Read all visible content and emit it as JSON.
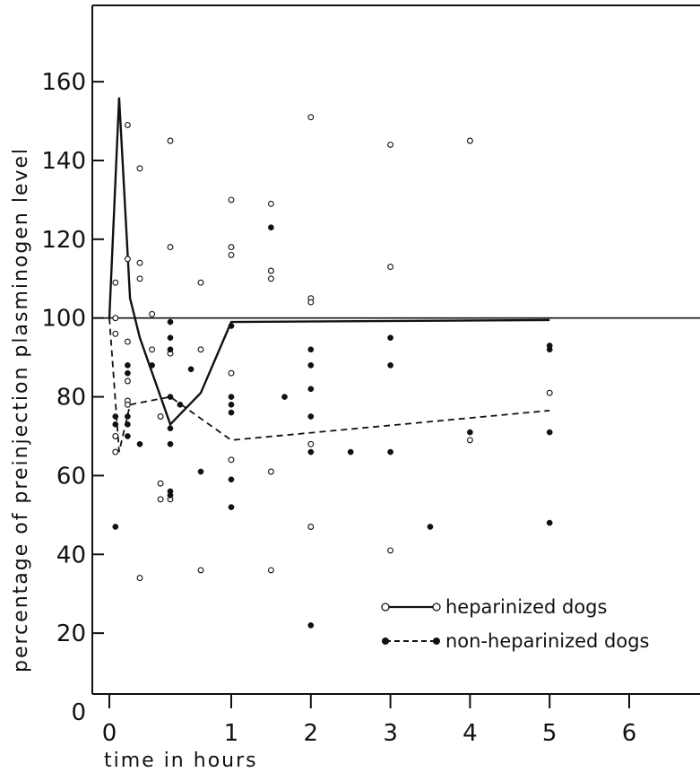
{
  "chart_data": {
    "type": "scatter",
    "xlabel": "time in hours",
    "ylabel": "percentage of preinjection plasminogen level",
    "x_ticks": [
      0,
      1,
      2,
      3,
      4,
      5,
      6
    ],
    "y_ticks": [
      0,
      20,
      40,
      60,
      80,
      100,
      120,
      140,
      160
    ],
    "ylim": [
      0,
      180
    ],
    "reference_line_y": 100,
    "legend": {
      "position": "bottom-right",
      "entries": [
        "heparinized dogs",
        "non-heparinized dogs"
      ]
    },
    "series": [
      {
        "name": "heparinized dogs",
        "marker": "open-circle",
        "line": "solid",
        "points": [
          [
            0.05,
            66
          ],
          [
            0.05,
            70
          ],
          [
            0.05,
            96
          ],
          [
            0.05,
            100
          ],
          [
            0.05,
            109
          ],
          [
            0.15,
            149
          ],
          [
            0.15,
            115
          ],
          [
            0.15,
            94
          ],
          [
            0.15,
            84
          ],
          [
            0.15,
            79
          ],
          [
            0.15,
            78
          ],
          [
            0.25,
            138
          ],
          [
            0.25,
            114
          ],
          [
            0.25,
            110
          ],
          [
            0.25,
            34
          ],
          [
            0.35,
            101
          ],
          [
            0.35,
            92
          ],
          [
            0.42,
            75
          ],
          [
            0.42,
            58
          ],
          [
            0.42,
            54
          ],
          [
            0.5,
            145
          ],
          [
            0.5,
            118
          ],
          [
            0.5,
            91
          ],
          [
            0.5,
            54
          ],
          [
            0.75,
            109
          ],
          [
            0.75,
            92
          ],
          [
            0.75,
            36
          ],
          [
            1.0,
            130
          ],
          [
            1.0,
            118
          ],
          [
            1.0,
            116
          ],
          [
            1.0,
            86
          ],
          [
            1.0,
            64
          ],
          [
            1.5,
            129
          ],
          [
            1.5,
            112
          ],
          [
            1.5,
            110
          ],
          [
            1.5,
            61
          ],
          [
            1.5,
            36
          ],
          [
            2.0,
            151
          ],
          [
            2.0,
            105
          ],
          [
            2.0,
            104
          ],
          [
            2.0,
            68
          ],
          [
            2.0,
            47
          ],
          [
            3.0,
            144
          ],
          [
            3.0,
            113
          ],
          [
            3.0,
            41
          ],
          [
            4.0,
            145
          ],
          [
            4.0,
            69
          ],
          [
            5.0,
            81
          ]
        ],
        "mean_line": [
          [
            0,
            100
          ],
          [
            0.08,
            156
          ],
          [
            0.17,
            105
          ],
          [
            0.25,
            95
          ],
          [
            0.5,
            73
          ],
          [
            0.75,
            81
          ],
          [
            1.0,
            99
          ],
          [
            5.0,
            99.5
          ]
        ]
      },
      {
        "name": "non-heparinized dogs",
        "marker": "filled-circle",
        "line": "dashed",
        "points": [
          [
            0.05,
            47
          ],
          [
            0.05,
            73
          ],
          [
            0.05,
            75
          ],
          [
            0.15,
            88
          ],
          [
            0.15,
            86
          ],
          [
            0.15,
            75
          ],
          [
            0.15,
            73
          ],
          [
            0.15,
            70
          ],
          [
            0.25,
            68
          ],
          [
            0.35,
            88
          ],
          [
            0.5,
            99
          ],
          [
            0.5,
            95
          ],
          [
            0.5,
            92
          ],
          [
            0.5,
            80
          ],
          [
            0.5,
            72
          ],
          [
            0.5,
            68
          ],
          [
            0.5,
            56
          ],
          [
            0.5,
            55
          ],
          [
            0.58,
            78
          ],
          [
            0.67,
            87
          ],
          [
            0.75,
            61
          ],
          [
            1.0,
            98
          ],
          [
            1.0,
            80
          ],
          [
            1.0,
            78
          ],
          [
            1.0,
            76
          ],
          [
            1.0,
            59
          ],
          [
            1.0,
            52
          ],
          [
            1.5,
            123
          ],
          [
            1.67,
            80
          ],
          [
            2.0,
            92
          ],
          [
            2.0,
            88
          ],
          [
            2.0,
            82
          ],
          [
            2.0,
            75
          ],
          [
            2.0,
            66
          ],
          [
            2.0,
            22
          ],
          [
            2.5,
            66
          ],
          [
            3.0,
            95
          ],
          [
            3.0,
            88
          ],
          [
            3.0,
            66
          ],
          [
            3.5,
            47
          ],
          [
            4.0,
            71
          ],
          [
            5.0,
            93
          ],
          [
            5.0,
            92
          ],
          [
            5.0,
            71
          ],
          [
            5.0,
            48
          ]
        ],
        "mean_line": [
          [
            0,
            100
          ],
          [
            0.08,
            66
          ],
          [
            0.17,
            78
          ],
          [
            0.5,
            80
          ],
          [
            1.0,
            69
          ],
          [
            5.0,
            76.5
          ]
        ]
      }
    ]
  }
}
